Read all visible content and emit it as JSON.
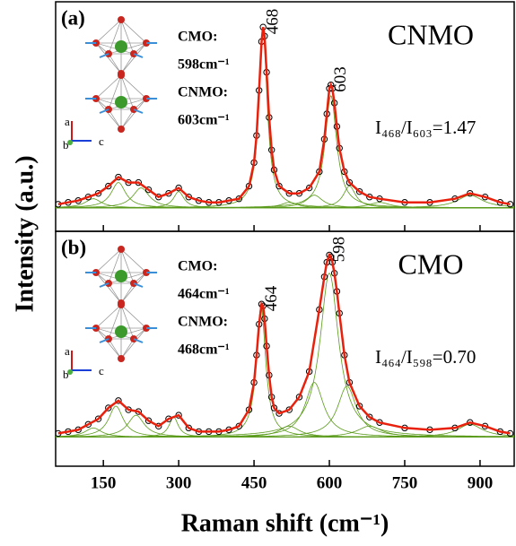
{
  "chart_data": [
    {
      "type": "line",
      "label": "(a)",
      "sample": "CNMO",
      "inset": [
        "CMO:",
        "598cm⁻¹",
        "CNMO:",
        "603cm⁻¹"
      ],
      "axes_labels": [
        "a",
        "b",
        "c"
      ],
      "ratio": "I₄₆₈/I₆₀₃=1.47",
      "ylabel": "Intensity (a.u.)",
      "peak_labels": [
        {
          "x": 468,
          "text": "468"
        },
        {
          "x": 603,
          "text": "603"
        }
      ],
      "xlim": [
        55,
        968
      ],
      "xticks": [
        150,
        300,
        450,
        600,
        750,
        900
      ],
      "ylim": [
        -0.13,
        1.14
      ],
      "marker_color": "#000000",
      "line_color": "#e8200c",
      "component_color": "#5a9a1a",
      "x": [
        60,
        80,
        100,
        120,
        140,
        160,
        180,
        200,
        220,
        240,
        260,
        280,
        300,
        320,
        340,
        360,
        380,
        400,
        420,
        440,
        450,
        455,
        460,
        465,
        468,
        471,
        475,
        480,
        485,
        490,
        500,
        520,
        540,
        560,
        580,
        590,
        595,
        600,
        603,
        606,
        610,
        615,
        620,
        630,
        640,
        660,
        680,
        700,
        750,
        800,
        850,
        880,
        910,
        940,
        960
      ],
      "values": [
        0.02,
        0.03,
        0.04,
        0.06,
        0.08,
        0.12,
        0.17,
        0.14,
        0.14,
        0.1,
        0.06,
        0.08,
        0.11,
        0.06,
        0.04,
        0.03,
        0.03,
        0.04,
        0.05,
        0.12,
        0.25,
        0.4,
        0.65,
        0.92,
        1.0,
        0.95,
        0.75,
        0.5,
        0.32,
        0.21,
        0.12,
        0.08,
        0.08,
        0.11,
        0.2,
        0.38,
        0.52,
        0.66,
        0.68,
        0.66,
        0.58,
        0.45,
        0.33,
        0.2,
        0.14,
        0.09,
        0.06,
        0.05,
        0.03,
        0.03,
        0.05,
        0.08,
        0.06,
        0.03,
        0.02
      ],
      "components": [
        {
          "center": 130,
          "height": 0.05,
          "width": 40
        },
        {
          "center": 180,
          "height": 0.14,
          "width": 35
        },
        {
          "center": 225,
          "height": 0.11,
          "width": 40
        },
        {
          "center": 300,
          "height": 0.09,
          "width": 25
        },
        {
          "center": 468,
          "height": 0.98,
          "width": 20
        },
        {
          "center": 520,
          "height": 0.03,
          "width": 40
        },
        {
          "center": 570,
          "height": 0.07,
          "width": 40
        },
        {
          "center": 603,
          "height": 0.62,
          "width": 28
        },
        {
          "center": 640,
          "height": 0.12,
          "width": 30
        },
        {
          "center": 700,
          "height": 0.03,
          "width": 50
        },
        {
          "center": 880,
          "height": 0.07,
          "width": 60
        }
      ]
    },
    {
      "type": "line",
      "label": "(b)",
      "sample": "CMO",
      "inset": [
        "CMO:",
        "464cm⁻¹",
        "CNMO:",
        "468cm⁻¹"
      ],
      "axes_labels": [
        "a",
        "b",
        "c"
      ],
      "ratio": "I₄₆₄/I₅₉₈=0.70",
      "xlabel": "Raman shift (cm⁻¹)",
      "peak_labels": [
        {
          "x": 465,
          "text": "464"
        },
        {
          "x": 600,
          "text": "598"
        }
      ],
      "xlim": [
        55,
        968
      ],
      "xticks": [
        150,
        300,
        450,
        600,
        750,
        900
      ],
      "ylim": [
        -0.16,
        1.13
      ],
      "marker_color": "#000000",
      "line_color": "#e8200c",
      "component_color": "#5a9a1a",
      "x": [
        60,
        80,
        100,
        120,
        140,
        160,
        180,
        200,
        220,
        240,
        260,
        280,
        300,
        320,
        340,
        360,
        380,
        400,
        420,
        440,
        450,
        455,
        460,
        465,
        468,
        471,
        475,
        480,
        485,
        490,
        500,
        520,
        540,
        560,
        580,
        590,
        595,
        600,
        603,
        606,
        610,
        615,
        620,
        630,
        640,
        660,
        680,
        700,
        750,
        800,
        850,
        880,
        910,
        940,
        960
      ],
      "values": [
        0.02,
        0.03,
        0.04,
        0.07,
        0.1,
        0.16,
        0.2,
        0.15,
        0.14,
        0.09,
        0.06,
        0.1,
        0.12,
        0.05,
        0.03,
        0.03,
        0.03,
        0.04,
        0.06,
        0.15,
        0.3,
        0.45,
        0.62,
        0.73,
        0.72,
        0.65,
        0.5,
        0.34,
        0.22,
        0.16,
        0.13,
        0.15,
        0.22,
        0.36,
        0.7,
        0.88,
        0.96,
        1.0,
        0.99,
        0.96,
        0.9,
        0.8,
        0.68,
        0.45,
        0.3,
        0.17,
        0.11,
        0.08,
        0.05,
        0.04,
        0.05,
        0.08,
        0.06,
        0.03,
        0.02
      ],
      "components": [
        {
          "center": 130,
          "height": 0.05,
          "width": 40
        },
        {
          "center": 175,
          "height": 0.17,
          "width": 35
        },
        {
          "center": 215,
          "height": 0.12,
          "width": 40
        },
        {
          "center": 290,
          "height": 0.11,
          "width": 22
        },
        {
          "center": 464,
          "height": 0.72,
          "width": 22
        },
        {
          "center": 520,
          "height": 0.06,
          "width": 50
        },
        {
          "center": 570,
          "height": 0.3,
          "width": 45
        },
        {
          "center": 600,
          "height": 0.9,
          "width": 45
        },
        {
          "center": 635,
          "height": 0.28,
          "width": 45
        },
        {
          "center": 680,
          "height": 0.06,
          "width": 60
        },
        {
          "center": 880,
          "height": 0.07,
          "width": 60
        }
      ]
    }
  ]
}
